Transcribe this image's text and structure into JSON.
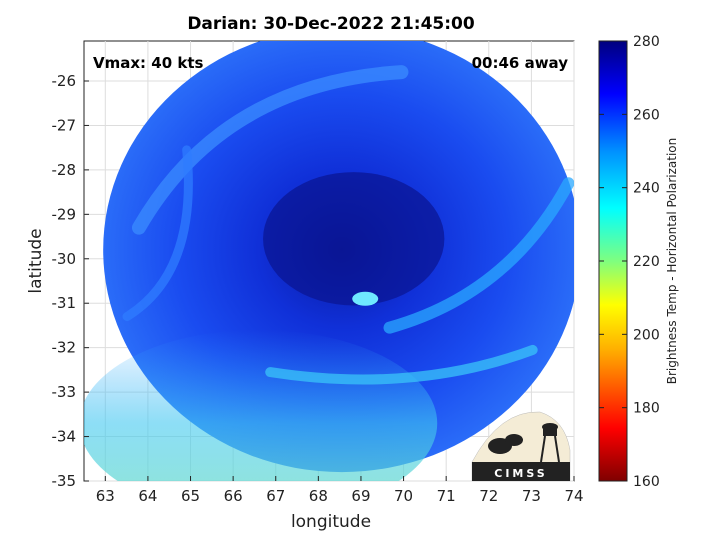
{
  "chart_data": {
    "type": "heatmap",
    "title": "Darian: 30-Dec-2022 21:45:00",
    "xlabel": "longitude",
    "ylabel": "latitude",
    "xlim": [
      62.5,
      74
    ],
    "ylim": [
      -35,
      -25.1
    ],
    "x_ticks": [
      63,
      64,
      65,
      66,
      67,
      68,
      69,
      70,
      71,
      72,
      73,
      74
    ],
    "y_ticks": [
      -26,
      -27,
      -28,
      -29,
      -30,
      -31,
      -32,
      -33,
      -34,
      -35
    ],
    "grid": true,
    "annotations": {
      "vmax": "Vmax: 40 kts",
      "away": "00:46 away"
    },
    "colorbar": {
      "label": "Brightness Temp - Horizontal Polarization",
      "range": [
        160,
        280
      ],
      "ticks": [
        160,
        180,
        200,
        220,
        240,
        260,
        280
      ],
      "colormap": "jet"
    },
    "swath": {
      "center_lon": 68.55,
      "center_lat": -29.8,
      "radius_lon": 5.6,
      "radius_lat": 5.0
    },
    "eye": {
      "lon": 69.1,
      "lat": -30.9
    },
    "logo": "CIMSS"
  }
}
